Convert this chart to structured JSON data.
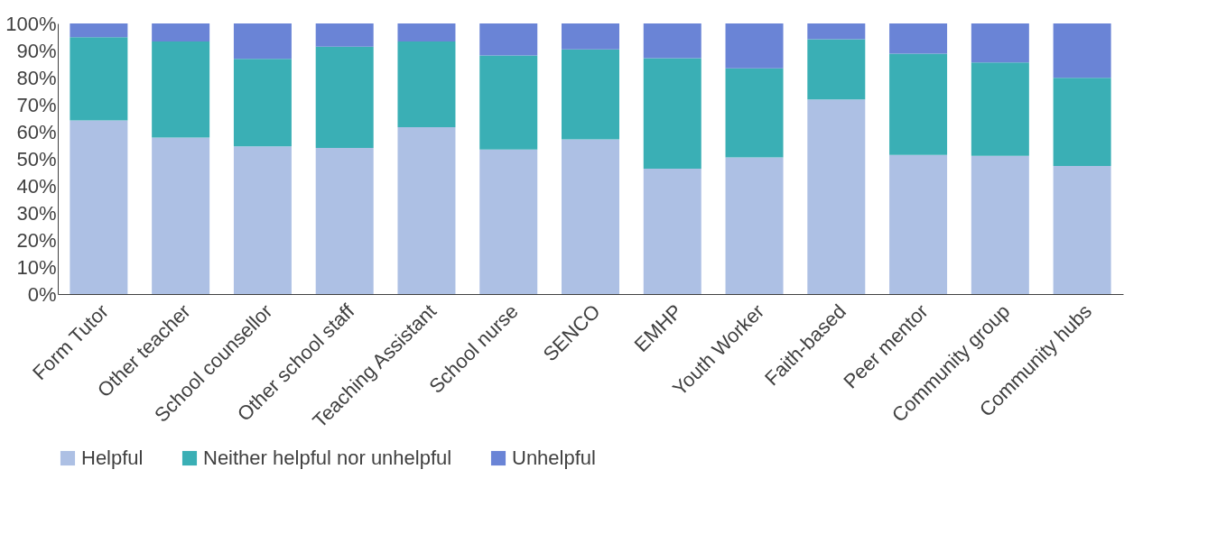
{
  "chart_data": {
    "type": "bar",
    "stacked": true,
    "categories": [
      "Form Tutor",
      "Other teacher",
      "School counsellor",
      "Other school staff",
      "Teaching Assistant",
      "School nurse",
      "SENCO",
      "EMHP",
      "Youth Worker",
      "Faith-based",
      "Peer mentor",
      "Community group",
      "Community hubs"
    ],
    "series": [
      {
        "name": "Helpful",
        "color": "#adc0e4",
        "values": [
          64.2,
          57.8,
          54.6,
          54.0,
          61.7,
          53.4,
          57.2,
          46.3,
          50.5,
          71.9,
          51.4,
          51.1,
          47.3
        ]
      },
      {
        "name": "Neither helpful nor unhelpful",
        "color": "#3aafb5",
        "values": [
          30.7,
          35.5,
          32.3,
          37.4,
          31.6,
          34.8,
          33.2,
          40.9,
          32.9,
          22.3,
          37.4,
          34.5,
          32.6
        ]
      },
      {
        "name": "Unhelpful",
        "color": "#6a84d6",
        "values": [
          5.1,
          6.7,
          13.1,
          8.6,
          6.7,
          11.8,
          9.6,
          12.8,
          16.6,
          5.8,
          11.2,
          14.4,
          20.1
        ]
      }
    ],
    "ylim": [
      0,
      100
    ],
    "yticks": [
      {
        "value": 0,
        "label": "0%"
      },
      {
        "value": 10,
        "label": "10%"
      },
      {
        "value": 20,
        "label": "20%"
      },
      {
        "value": 30,
        "label": "30%"
      },
      {
        "value": 40,
        "label": "40%"
      },
      {
        "value": 50,
        "label": "50%"
      },
      {
        "value": 60,
        "label": "60%"
      },
      {
        "value": 70,
        "label": "70%"
      },
      {
        "value": 80,
        "label": "80%"
      },
      {
        "value": 90,
        "label": "90%"
      },
      {
        "value": 100,
        "label": "100%"
      }
    ],
    "grid": false,
    "legend": "bottom"
  }
}
